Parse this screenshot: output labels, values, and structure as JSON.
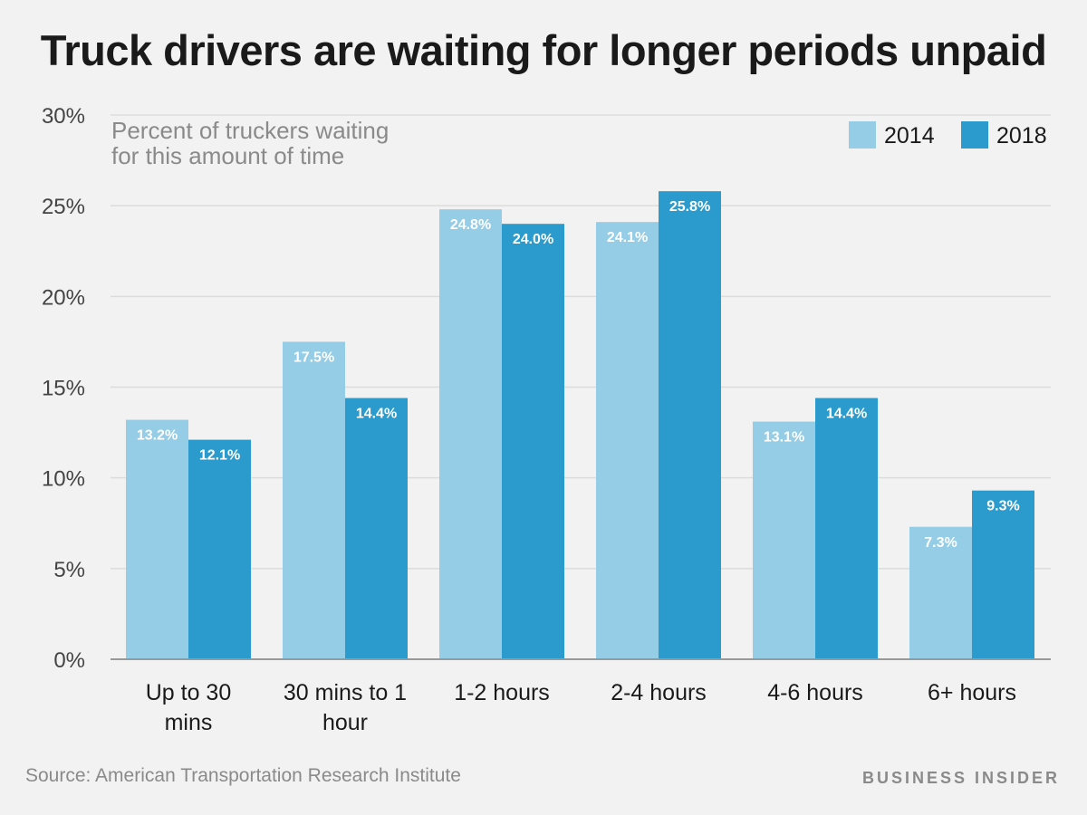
{
  "title": "Truck drivers are waiting for longer periods unpaid",
  "source": "Source: American Transportation Research Institute",
  "brand": "BUSINESS INSIDER",
  "colors": {
    "s2014": "#95cce6",
    "s2018": "#2a9bcc",
    "grid": "#dcdcdc",
    "axis": "#999999"
  },
  "chart_data": {
    "type": "bar",
    "subtitle_lines": [
      "Percent of truckers waiting",
      "for this amount of time"
    ],
    "categories": [
      [
        "Up to 30",
        "mins"
      ],
      [
        "30 mins to 1",
        "hour"
      ],
      [
        "1-2 hours"
      ],
      [
        "2-4 hours"
      ],
      [
        "4-6 hours"
      ],
      [
        "6+ hours"
      ]
    ],
    "series": [
      {
        "name": "2014",
        "values": [
          13.2,
          17.5,
          24.8,
          24.1,
          13.1,
          7.3
        ],
        "labels": [
          "13.2%",
          "17.5%",
          "24.8%",
          "24.1%",
          "13.1%",
          "7.3%"
        ]
      },
      {
        "name": "2018",
        "values": [
          12.1,
          14.4,
          24.0,
          25.8,
          14.4,
          9.3
        ],
        "labels": [
          "12.1%",
          "14.4%",
          "24.0%",
          "25.8%",
          "14.4%",
          "9.3%"
        ]
      }
    ],
    "yticks": [
      0,
      5,
      10,
      15,
      20,
      25,
      30
    ],
    "ytick_labels": [
      "0%",
      "5%",
      "10%",
      "15%",
      "20%",
      "25%",
      "30%"
    ],
    "ylim": [
      0,
      30
    ],
    "grid": true,
    "legend": "top-right"
  }
}
